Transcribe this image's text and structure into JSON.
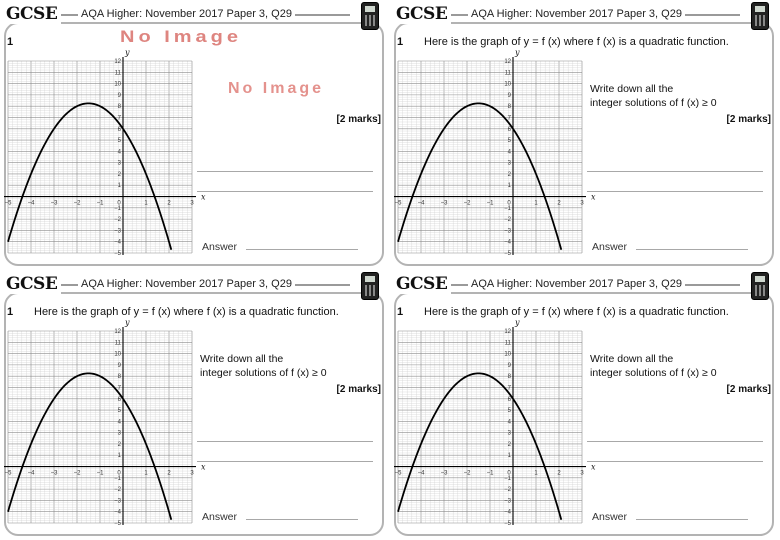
{
  "cards": [
    {
      "brand": "GCSE",
      "exam_title": "AQA Higher: November 2017 Paper 3, Q29",
      "question_number": "1",
      "stem": null,
      "placeholder_top": "No Image",
      "placeholder_mid": "No Image",
      "prompt_line1": null,
      "prompt_line2": null,
      "marks": "[2 marks]",
      "answer_label": "Answer"
    },
    {
      "brand": "GCSE",
      "exam_title": "AQA Higher: November 2017 Paper 3, Q29",
      "question_number": "1",
      "stem": "Here is the graph of y = f (x) where f (x) is a quadratic function.",
      "prompt_line1": "Write down all the",
      "prompt_line2": "integer solutions of f (x) ≥ 0",
      "marks": "[2 marks]",
      "answer_label": "Answer"
    },
    {
      "brand": "GCSE",
      "exam_title": "AQA Higher: November 2017 Paper 3, Q29",
      "question_number": "1",
      "stem": "Here is the graph of y = f (x) where f (x) is a quadratic function.",
      "prompt_line1": "Write down all the",
      "prompt_line2": "integer solutions of f (x) ≥ 0",
      "marks": "[2 marks]",
      "answer_label": "Answer"
    },
    {
      "brand": "GCSE",
      "exam_title": "AQA Higher: November 2017 Paper 3, Q29",
      "question_number": "1",
      "stem": "Here is the graph of y = f (x) where f (x) is a quadratic function.",
      "prompt_line1": "Write down all the",
      "prompt_line2": "integer solutions of f (x) ≥ 0",
      "marks": "[2 marks]",
      "answer_label": "Answer"
    }
  ],
  "graph": {
    "x_label": "x",
    "y_label": "y",
    "x_ticks": [
      "−5",
      "−4",
      "−3",
      "−2",
      "−1",
      "0",
      "1",
      "2",
      "3"
    ],
    "y_ticks": [
      "12",
      "11",
      "10",
      "9",
      "8",
      "7",
      "6",
      "5",
      "4",
      "3",
      "2",
      "1",
      "0",
      "−1",
      "−2",
      "−3",
      "−4",
      "−5"
    ],
    "x_range": [
      -5,
      3
    ],
    "y_range": [
      -5,
      12
    ],
    "curve": "quadratic, vertex approx (-1.5, 8.25), roots approx -4.4 and 1.4",
    "colors": {
      "grid_fine": "#d0d0d0",
      "grid_major": "#8c8c8c",
      "curve": "#000000"
    }
  }
}
